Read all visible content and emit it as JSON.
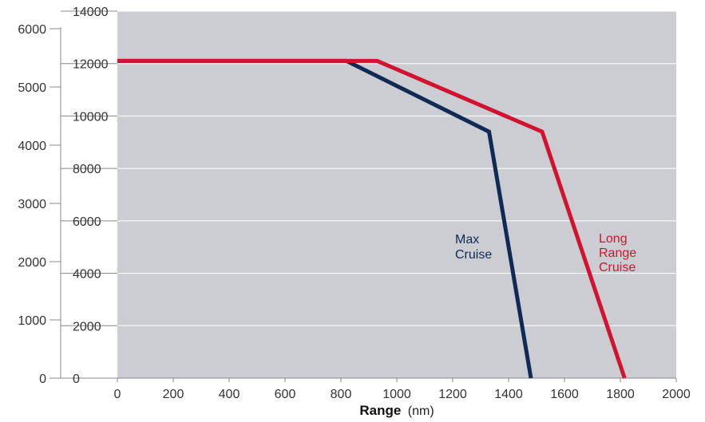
{
  "chart_data": {
    "type": "line",
    "xlabel": "Range",
    "xlabel_unit": "(nm)",
    "x_ticks": [
      "0",
      "200",
      "400",
      "600",
      "800",
      "1000",
      "1200",
      "1400",
      "1600",
      "1800",
      "2000"
    ],
    "xlim": [
      0,
      2000
    ],
    "y_left_outer_ticks": [
      "0",
      "1000",
      "2000",
      "3000",
      "4000",
      "5000",
      "6000"
    ],
    "y_left_outer_lim": [
      0,
      6000
    ],
    "y_left_inner_ticks": [
      "0",
      "2000",
      "4000",
      "6000",
      "8000",
      "10000",
      "12000",
      "14000"
    ],
    "y_left_inner_lim": [
      0,
      14000
    ],
    "grid": true,
    "series": [
      {
        "name": "Max Cruise",
        "label_lines": [
          "Max",
          "Cruise"
        ],
        "color": "#0f2a55",
        "x": [
          0,
          820,
          1330,
          1480
        ],
        "y": [
          12100,
          12100,
          9400,
          0
        ]
      },
      {
        "name": "Long Range Cruise",
        "label_lines": [
          "Long",
          "Range",
          "Cruise"
        ],
        "color": "#d3122f",
        "x": [
          0,
          930,
          1520,
          1815
        ],
        "y": [
          12100,
          12100,
          9400,
          0
        ]
      }
    ],
    "colors": {
      "plot_background": "#cbcdd2",
      "grid": "#ffffff",
      "axis": "#888888"
    }
  }
}
